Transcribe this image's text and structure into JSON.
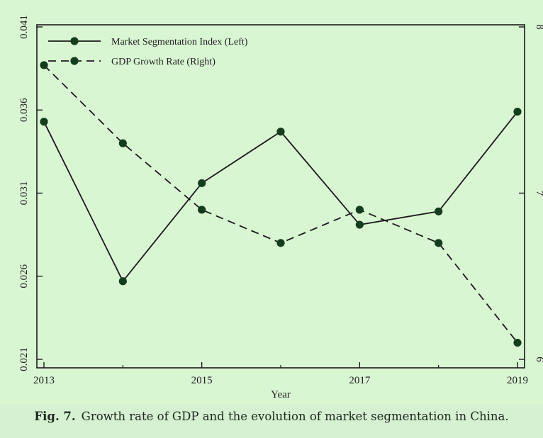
{
  "caption": {
    "label": "Fig. 7.",
    "text": "Growth rate of GDP and the evolution of market segmentation in China."
  },
  "chart_data": {
    "type": "line",
    "title": "",
    "xlabel": "Year",
    "ylabel_left": "",
    "ylabel_right": "",
    "x": [
      2013,
      2014,
      2015,
      2016,
      2017,
      2018,
      2019
    ],
    "x_ticks": [
      "2013",
      "2015",
      "2017",
      "2019"
    ],
    "xlim": [
      2013,
      2019
    ],
    "ylim_left": [
      0.021,
      0.041
    ],
    "ylim_right": [
      6,
      8
    ],
    "y_ticks_left": [
      "0.021",
      "0.026",
      "0.031",
      "0.036",
      "0.041"
    ],
    "y_ticks_right": [
      "6",
      "7",
      "8"
    ],
    "legend_position": "top-left",
    "grid": false,
    "series": [
      {
        "name": "Market Segmentation Index (Left)",
        "axis": "left",
        "style": "solid",
        "values": [
          0.0353,
          0.0257,
          0.0316,
          0.0347,
          0.0291,
          0.0299,
          0.0359
        ]
      },
      {
        "name": "GDP Growth Rate (Right)",
        "axis": "right",
        "style": "dashed",
        "values": [
          7.77,
          7.3,
          6.9,
          6.7,
          6.9,
          6.7,
          6.1
        ]
      }
    ],
    "colors": {
      "line": "#1a1a1a",
      "marker": "#143d1c",
      "background": "#d9f6d3"
    }
  }
}
